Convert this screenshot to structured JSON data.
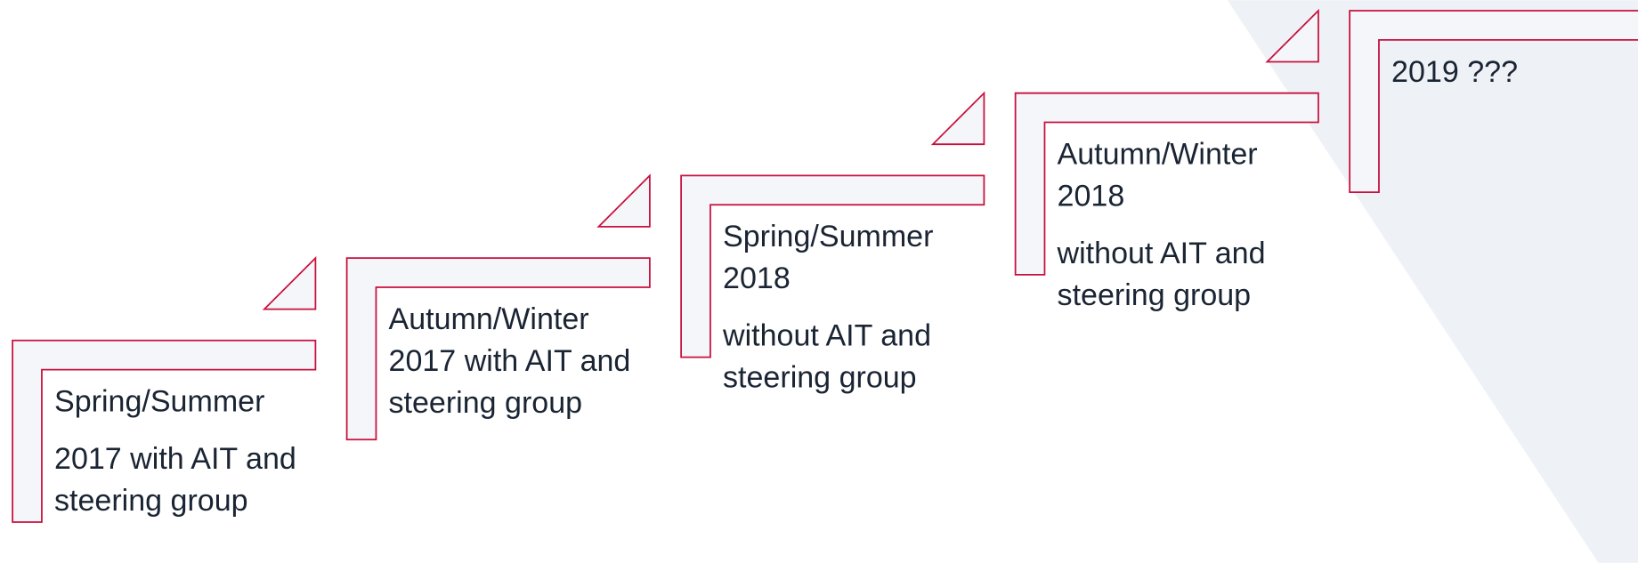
{
  "steps": [
    {
      "paragraphs": [
        "Spring/Summer",
        "2017 with AIT and steering group"
      ]
    },
    {
      "paragraphs": [
        "Autumn/Winter 2017 with AIT and steering group"
      ]
    },
    {
      "paragraphs": [
        "Spring/Summer 2018",
        "without AIT and steering group"
      ]
    },
    {
      "paragraphs": [
        "Autumn/Winter 2018",
        "without AIT and steering group"
      ]
    },
    {
      "paragraphs": [
        "2019 ???"
      ]
    }
  ]
}
